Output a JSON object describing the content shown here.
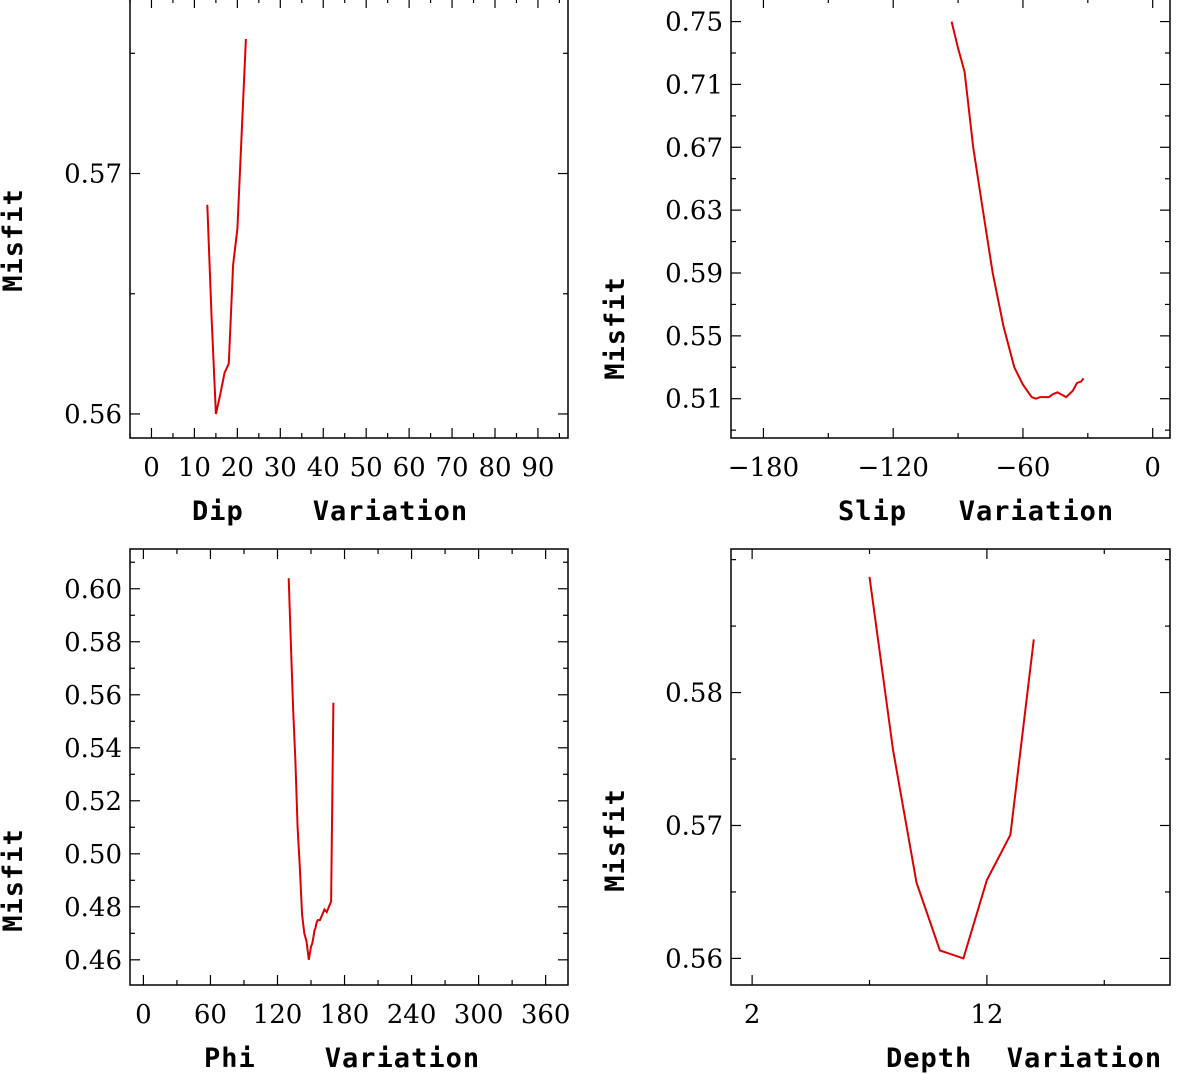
{
  "chart_data": [
    {
      "id": "dip",
      "type": "line",
      "xlabel": "Dip    Variation",
      "ylabel": "Misfit",
      "xlim": [
        -5,
        97
      ],
      "ylim": [
        0.559,
        0.5773
      ],
      "xticks": [
        0,
        10,
        20,
        30,
        40,
        50,
        60,
        70,
        80,
        90
      ],
      "xtick_labels": [
        "0",
        "10",
        "20",
        "30",
        "40",
        "50",
        "60",
        "70",
        "80",
        "90"
      ],
      "yticks": [
        0.56,
        0.57
      ],
      "ytick_labels": [
        "0.56",
        "0.57"
      ],
      "x": [
        13,
        14,
        15,
        16,
        17,
        18,
        19,
        20,
        22
      ],
      "y": [
        0.5687,
        0.564,
        0.56,
        0.5608,
        0.5617,
        0.5621,
        0.5662,
        0.5677,
        0.5756
      ],
      "color": "#dd0000"
    },
    {
      "id": "slip",
      "type": "line",
      "xlabel": "Slip   Variation",
      "ylabel": "Misfit",
      "xlim": [
        -195,
        8
      ],
      "ylim": [
        0.485,
        0.765
      ],
      "xticks": [
        -180,
        -120,
        -60,
        0
      ],
      "xtick_labels": [
        "−180",
        "−120",
        "−60",
        "0"
      ],
      "yticks": [
        0.51,
        0.55,
        0.59,
        0.63,
        0.67,
        0.71,
        0.75
      ],
      "ytick_labels": [
        "0.51",
        "0.55",
        "0.59",
        "0.63",
        "0.67",
        "0.71",
        "0.75"
      ],
      "x": [
        -93,
        -90,
        -87,
        -83,
        -79,
        -74,
        -69,
        -64,
        -60,
        -56,
        -54,
        -52,
        -48,
        -46,
        -44,
        -40,
        -37,
        -35,
        -33,
        -32
      ],
      "y": [
        0.75,
        0.733,
        0.718,
        0.67,
        0.634,
        0.59,
        0.556,
        0.53,
        0.519,
        0.511,
        0.51,
        0.511,
        0.511,
        0.513,
        0.514,
        0.511,
        0.515,
        0.52,
        0.521,
        0.523
      ],
      "color": "#dd0000"
    },
    {
      "id": "phi",
      "type": "line",
      "xlabel": "Phi    Variation",
      "ylabel": "Misfit",
      "xlim": [
        -12,
        380
      ],
      "ylim": [
        0.4505,
        0.615
      ],
      "xticks": [
        0,
        60,
        120,
        180,
        240,
        300,
        360
      ],
      "xtick_labels": [
        "0",
        "60",
        "120",
        "180",
        "240",
        "300",
        "360"
      ],
      "yticks": [
        0.46,
        0.48,
        0.5,
        0.52,
        0.54,
        0.56,
        0.58,
        0.6
      ],
      "ytick_labels": [
        "0.46",
        "0.48",
        "0.50",
        "0.52",
        "0.54",
        "0.56",
        "0.58",
        "0.60"
      ],
      "x": [
        130,
        132,
        134,
        136,
        138,
        140,
        142,
        144,
        146,
        148,
        150,
        151,
        152,
        153,
        154,
        155,
        156,
        158,
        160,
        162,
        164,
        166,
        168,
        170
      ],
      "y": [
        0.604,
        0.579,
        0.555,
        0.535,
        0.51,
        0.495,
        0.477,
        0.47,
        0.467,
        0.46,
        0.465,
        0.466,
        0.468,
        0.471,
        0.472,
        0.474,
        0.475,
        0.475,
        0.477,
        0.479,
        0.478,
        0.48,
        0.482,
        0.557
      ],
      "color": "#dd0000"
    },
    {
      "id": "depth",
      "type": "line",
      "xlabel": "Depth  Variation",
      "ylabel": "Misfit",
      "xlim": [
        1.1,
        19.8
      ],
      "ylim": [
        0.558,
        0.5908
      ],
      "xticks": [
        2,
        12
      ],
      "xtick_labels": [
        "2",
        "12"
      ],
      "yticks": [
        0.56,
        0.57,
        0.58
      ],
      "ytick_labels": [
        "0.56",
        "0.57",
        "0.58"
      ],
      "x": [
        7,
        8,
        9,
        10,
        11,
        12,
        13,
        14
      ],
      "y": [
        0.5887,
        0.5757,
        0.5657,
        0.5606,
        0.56,
        0.5659,
        0.5693,
        0.584
      ],
      "color": "#dd0000"
    }
  ]
}
